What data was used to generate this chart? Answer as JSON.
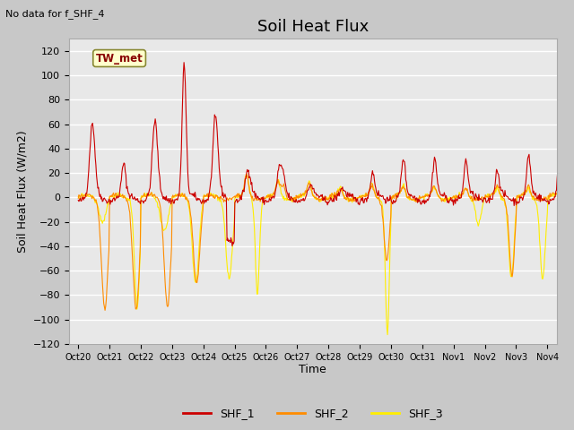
{
  "title": "Soil Heat Flux",
  "ylabel": "Soil Heat Flux (W/m2)",
  "xlabel": "Time",
  "note": "No data for f_SHF_4",
  "station_label": "TW_met",
  "ylim": [
    -120,
    130
  ],
  "yticks": [
    -120,
    -100,
    -80,
    -60,
    -40,
    -20,
    0,
    20,
    40,
    60,
    80,
    100,
    120
  ],
  "xtick_labels": [
    "Oct 20",
    "Oct 21",
    "Oct 22",
    "Oct 23",
    "Oct 24",
    "Oct 25",
    "Oct 26",
    "Oct 27",
    "Oct 28",
    "Oct 29",
    "Oct 30",
    "Oct 31",
    "Nov 1",
    "Nov 2",
    "Nov 3",
    "Nov 4"
  ],
  "colors": {
    "SHF_1": "#cc0000",
    "SHF_2": "#ff8c00",
    "SHF_3": "#ffee00",
    "fig_bg": "#c8c8c8",
    "axes_bg": "#e8e8e8"
  },
  "legend_entries": [
    "SHF_1",
    "SHF_2",
    "SHF_3"
  ],
  "title_fontsize": 13,
  "label_fontsize": 9,
  "tick_fontsize": 8
}
